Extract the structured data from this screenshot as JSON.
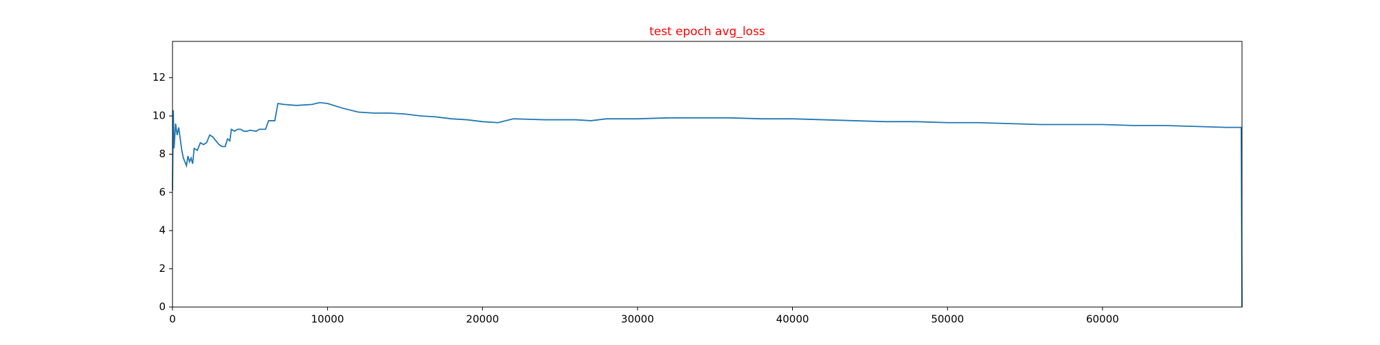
{
  "chart_data": {
    "type": "line",
    "title": "test epoch avg_loss",
    "title_color": "#ff0000",
    "color": "#1f77b4",
    "x": [
      0,
      50,
      100,
      200,
      300,
      400,
      500,
      600,
      700,
      800,
      900,
      1000,
      1100,
      1200,
      1300,
      1400,
      1600,
      1800,
      2000,
      2200,
      2400,
      2600,
      2800,
      3000,
      3200,
      3400,
      3550,
      3700,
      3800,
      4000,
      4200,
      4400,
      4600,
      4800,
      5000,
      5400,
      5600,
      6000,
      6200,
      6600,
      6800,
      7200,
      8000,
      9000,
      9500,
      10000,
      11000,
      12000,
      13000,
      14000,
      15000,
      16000,
      17000,
      18000,
      19000,
      20000,
      21000,
      22000,
      24000,
      26000,
      27000,
      28000,
      30000,
      32000,
      34000,
      36000,
      38000,
      40000,
      42000,
      44000,
      46000,
      48000,
      50000,
      52000,
      54000,
      56000,
      58000,
      60000,
      62000,
      64000,
      66000,
      68000,
      68950,
      69000
    ],
    "values": [
      6.1,
      10.3,
      8.3,
      9.6,
      9.0,
      9.4,
      8.8,
      8.2,
      7.8,
      7.6,
      7.4,
      7.9,
      7.6,
      7.8,
      7.5,
      8.3,
      8.2,
      8.6,
      8.5,
      8.6,
      9.0,
      8.9,
      8.7,
      8.5,
      8.4,
      8.4,
      8.8,
      8.7,
      9.3,
      9.2,
      9.3,
      9.3,
      9.2,
      9.2,
      9.25,
      9.2,
      9.3,
      9.3,
      9.75,
      9.75,
      10.65,
      10.6,
      10.55,
      10.6,
      10.7,
      10.65,
      10.4,
      10.2,
      10.15,
      10.15,
      10.1,
      10.0,
      9.95,
      9.85,
      9.8,
      9.7,
      9.65,
      9.85,
      9.8,
      9.8,
      9.75,
      9.85,
      9.85,
      9.9,
      9.9,
      9.9,
      9.85,
      9.85,
      9.8,
      9.75,
      9.7,
      9.7,
      9.65,
      9.65,
      9.6,
      9.55,
      9.55,
      9.55,
      9.5,
      9.5,
      9.45,
      9.4,
      9.4,
      0
    ],
    "xlim": [
      0,
      69000
    ],
    "ylim": [
      0,
      13.9
    ],
    "xticks": [
      0,
      10000,
      20000,
      30000,
      40000,
      50000,
      60000
    ],
    "yticks": [
      0,
      2,
      4,
      6,
      8,
      10,
      12
    ]
  }
}
